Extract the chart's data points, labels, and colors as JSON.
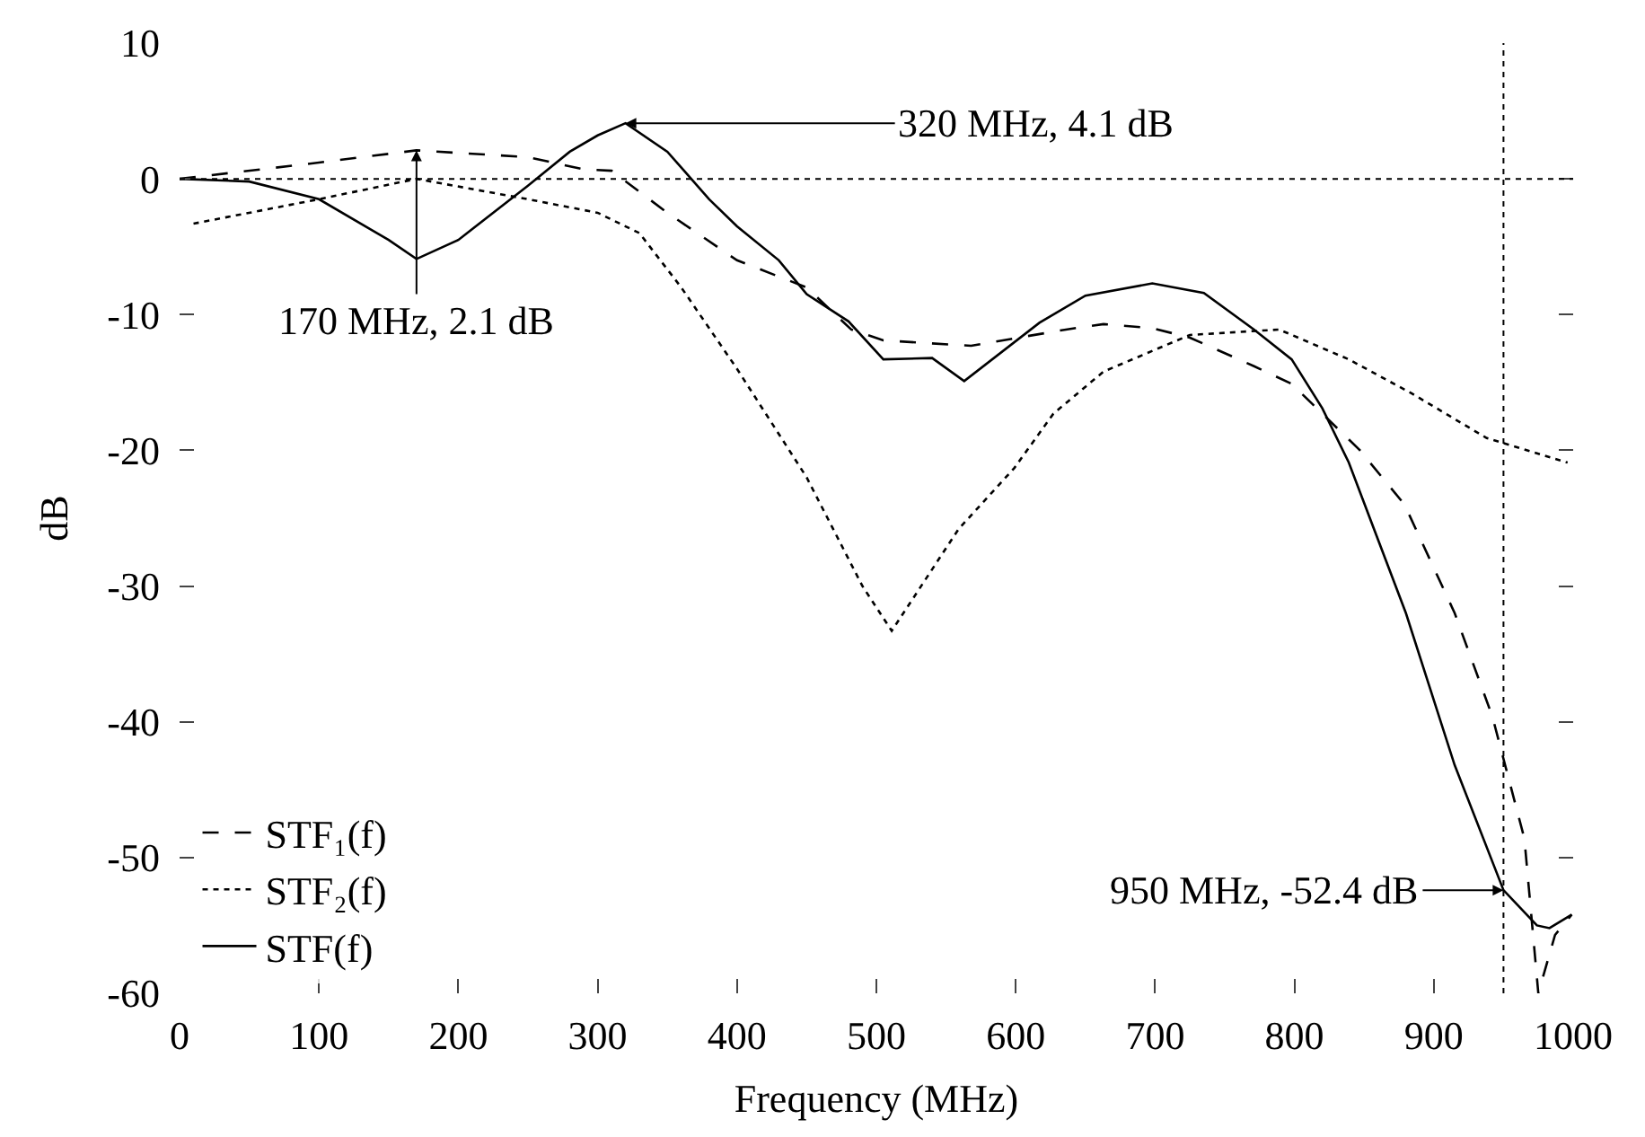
{
  "chart_data": {
    "type": "line",
    "xlabel": "Frequency (MHz)",
    "ylabel": "dB",
    "xlim": [
      0,
      1000
    ],
    "xticks": [
      0,
      100,
      200,
      300,
      400,
      500,
      600,
      700,
      800,
      900,
      1000
    ],
    "ylim": [
      -60,
      10
    ],
    "yticks": [
      -60,
      -50,
      -40,
      -30,
      -20,
      -10,
      0,
      10
    ],
    "legend": "bottom left",
    "series": [
      {
        "name": "STF₁(f)",
        "color": "#000000",
        "line_style": "dashed",
        "x": [
          0,
          100,
          170,
          250,
          290,
          310,
          350,
          400,
          450,
          482,
          505,
          568,
          636,
          663,
          698,
          725,
          771,
          798,
          820,
          847,
          879,
          915,
          942,
          965,
          975,
          987,
          999
        ],
        "values": [
          0,
          1.2,
          2.1,
          1.6,
          0.7,
          0.6,
          -2.5,
          -6,
          -8,
          -11.1,
          -11.9,
          -12.3,
          -11.1,
          -10.7,
          -11,
          -11.7,
          -13.8,
          -15.1,
          -17.3,
          -20,
          -24,
          -32,
          -39.6,
          -48.6,
          -60,
          -55.7,
          -54.2
        ]
      },
      {
        "name": "STF₂(f)",
        "color": "#000000",
        "line_style": "dotted",
        "x": [
          10,
          100,
          170,
          250,
          300,
          330,
          360,
          400,
          450,
          490,
          511,
          559,
          599,
          627,
          663,
          725,
          789,
          839,
          884,
          938,
          996
        ],
        "values": [
          -3.3,
          -1.5,
          0,
          -1.5,
          -2.5,
          -4,
          -8,
          -14,
          -22,
          -30,
          -33.3,
          -25.8,
          -21.3,
          -17.3,
          -14.2,
          -11.5,
          -11.1,
          -13.3,
          -15.8,
          -19.1,
          -20.9
        ]
      },
      {
        "name": "STF(f)",
        "color": "#000000",
        "line_style": "solid",
        "x": [
          0,
          50,
          100,
          150,
          170,
          200,
          250,
          280,
          300,
          320,
          350,
          380,
          400,
          430,
          450,
          480,
          505,
          540,
          563,
          617,
          650,
          698,
          735,
          771,
          798,
          820,
          839,
          880,
          915,
          950,
          974,
          983,
          999
        ],
        "values": [
          0,
          -0.2,
          -1.5,
          -4.5,
          -5.9,
          -4.5,
          -0.5,
          2,
          3.2,
          4.1,
          2,
          -1.5,
          -3.5,
          -6,
          -8.5,
          -10.5,
          -13.3,
          -13.2,
          -14.9,
          -10.6,
          -8.6,
          -7.7,
          -8.4,
          -11.1,
          -13.3,
          -16.9,
          -20.9,
          -32,
          -43.2,
          -52.4,
          -55,
          -55.2,
          -54.2
        ]
      }
    ],
    "ref_lines": [
      {
        "axis": "y",
        "value": 0,
        "line_style": "dotted"
      },
      {
        "axis": "x",
        "value": 950,
        "line_style": "dotted"
      }
    ],
    "annotations": [
      {
        "text": "170 MHz, 2.1 dB",
        "x": 170,
        "y": 2.1
      },
      {
        "text": "320 MHz, 4.1 dB",
        "x": 320,
        "y": 4.1
      },
      {
        "text": "950 MHz, -52.4 dB",
        "x": 950,
        "y": -52.4
      }
    ]
  }
}
